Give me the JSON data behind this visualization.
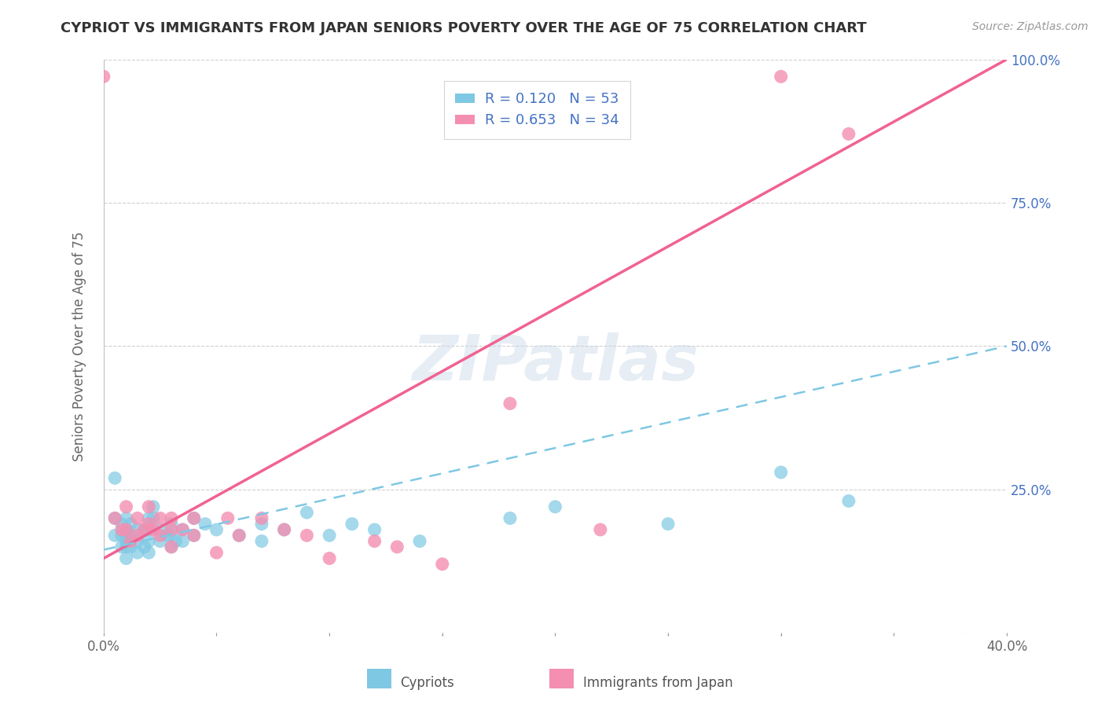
{
  "title": "CYPRIOT VS IMMIGRANTS FROM JAPAN SENIORS POVERTY OVER THE AGE OF 75 CORRELATION CHART",
  "source": "Source: ZipAtlas.com",
  "ylabel": "Seniors Poverty Over the Age of 75",
  "xlim": [
    0.0,
    0.4
  ],
  "ylim": [
    0.0,
    1.0
  ],
  "xticks": [
    0.0,
    0.05,
    0.1,
    0.15,
    0.2,
    0.25,
    0.3,
    0.35,
    0.4
  ],
  "xtick_labels": [
    "0.0%",
    "",
    "",
    "",
    "",
    "",
    "",
    "",
    "40.0%"
  ],
  "yticks": [
    0.0,
    0.25,
    0.5,
    0.75,
    1.0
  ],
  "ytick_labels_right": [
    "",
    "25.0%",
    "50.0%",
    "75.0%",
    "100.0%"
  ],
  "cypriot_color": "#7ec8e3",
  "japan_color": "#f48fb1",
  "cypriot_line_color": "#7ec8e3",
  "japan_line_color": "#f06292",
  "cypriot_R": 0.12,
  "cypriot_N": 53,
  "japan_R": 0.653,
  "japan_N": 34,
  "legend_color": "#4472c4",
  "watermark_text": "ZIPatlas",
  "background_color": "#ffffff",
  "grid_color": "#d0d0d0",
  "japan_line_x": [
    0.0,
    0.4
  ],
  "japan_line_y": [
    0.13,
    1.0
  ],
  "cypriot_line_x": [
    0.0,
    0.4
  ],
  "cypriot_line_y": [
    0.145,
    0.5
  ],
  "cypriot_scatter_x": [
    0.005,
    0.005,
    0.005,
    0.008,
    0.008,
    0.008,
    0.01,
    0.01,
    0.01,
    0.01,
    0.01,
    0.01,
    0.012,
    0.012,
    0.012,
    0.015,
    0.015,
    0.015,
    0.018,
    0.018,
    0.02,
    0.02,
    0.02,
    0.02,
    0.022,
    0.022,
    0.025,
    0.025,
    0.028,
    0.03,
    0.03,
    0.03,
    0.032,
    0.035,
    0.035,
    0.04,
    0.04,
    0.045,
    0.05,
    0.06,
    0.07,
    0.07,
    0.08,
    0.09,
    0.1,
    0.11,
    0.12,
    0.14,
    0.18,
    0.2,
    0.25,
    0.3,
    0.33
  ],
  "cypriot_scatter_y": [
    0.27,
    0.2,
    0.17,
    0.19,
    0.17,
    0.15,
    0.2,
    0.18,
    0.17,
    0.16,
    0.15,
    0.13,
    0.19,
    0.17,
    0.15,
    0.18,
    0.16,
    0.14,
    0.18,
    0.15,
    0.2,
    0.18,
    0.16,
    0.14,
    0.22,
    0.2,
    0.18,
    0.16,
    0.17,
    0.19,
    0.17,
    0.15,
    0.16,
    0.18,
    0.16,
    0.2,
    0.17,
    0.19,
    0.18,
    0.17,
    0.19,
    0.16,
    0.18,
    0.21,
    0.17,
    0.19,
    0.18,
    0.16,
    0.2,
    0.22,
    0.19,
    0.28,
    0.23
  ],
  "japan_scatter_x": [
    0.0,
    0.005,
    0.008,
    0.01,
    0.01,
    0.012,
    0.015,
    0.015,
    0.018,
    0.02,
    0.02,
    0.022,
    0.025,
    0.025,
    0.03,
    0.03,
    0.03,
    0.035,
    0.04,
    0.04,
    0.05,
    0.055,
    0.06,
    0.07,
    0.08,
    0.09,
    0.1,
    0.12,
    0.13,
    0.15,
    0.18,
    0.22,
    0.3,
    0.33
  ],
  "japan_scatter_y": [
    0.97,
    0.2,
    0.18,
    0.22,
    0.18,
    0.16,
    0.2,
    0.17,
    0.18,
    0.22,
    0.19,
    0.18,
    0.2,
    0.17,
    0.2,
    0.18,
    0.15,
    0.18,
    0.2,
    0.17,
    0.14,
    0.2,
    0.17,
    0.2,
    0.18,
    0.17,
    0.13,
    0.16,
    0.15,
    0.12,
    0.4,
    0.18,
    0.97,
    0.87
  ]
}
